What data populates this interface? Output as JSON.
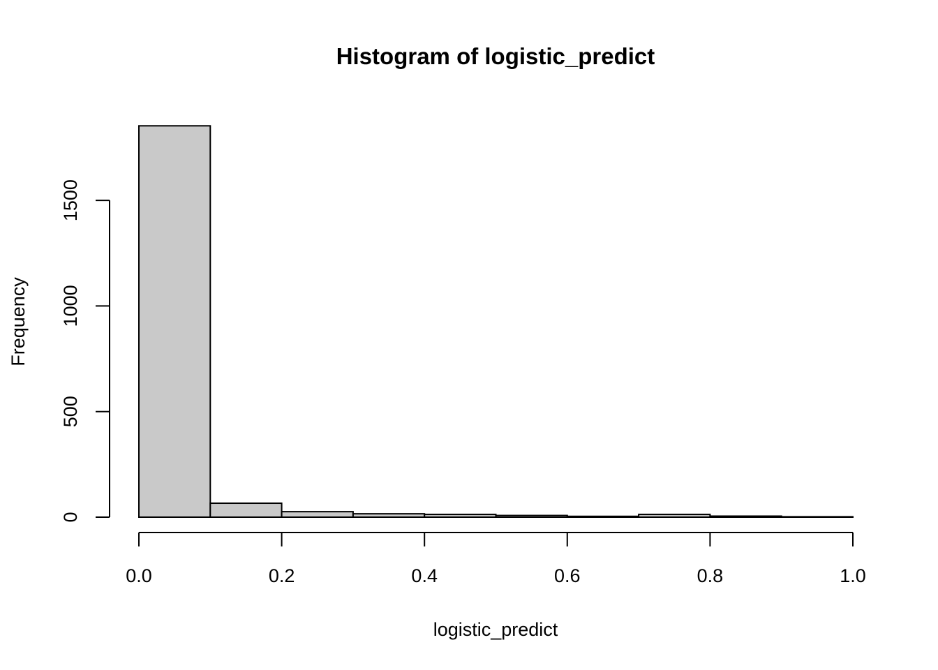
{
  "chart_data": {
    "type": "bar",
    "title": "Histogram of logistic_predict",
    "xlabel": "logistic_predict",
    "ylabel": "Frequency",
    "bin_edges": [
      0.0,
      0.1,
      0.2,
      0.3,
      0.4,
      0.5,
      0.6,
      0.7,
      0.8,
      0.9,
      1.0
    ],
    "values": [
      1853,
      66,
      26,
      16,
      13,
      8,
      4,
      13,
      5,
      2
    ],
    "xlim": [
      0,
      1
    ],
    "ylim": [
      0,
      1853
    ],
    "x_ticks": [
      "0.0",
      "0.2",
      "0.4",
      "0.6",
      "0.8",
      "1.0"
    ],
    "y_ticks": [
      "0",
      "500",
      "1000",
      "1500"
    ],
    "bar_color": "#c9c9c9",
    "grid": false
  }
}
